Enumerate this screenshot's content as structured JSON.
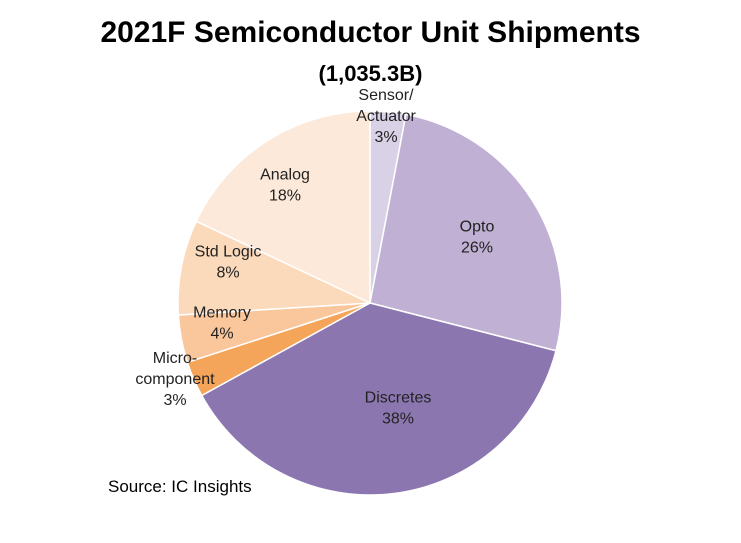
{
  "chart_data": {
    "type": "pie",
    "title": "2021F Semiconductor Unit Shipments",
    "subtitle": "(1,035.3B)",
    "source": "Source:  IC Insights",
    "slices": [
      {
        "label_lines": [
          "Sensor/",
          "Actuator",
          "3%"
        ],
        "value": 3,
        "color": "#d9d1e6"
      },
      {
        "label_lines": [
          "Opto",
          "26%"
        ],
        "value": 26,
        "color": "#bfb0d4"
      },
      {
        "label_lines": [
          "Discretes",
          "38%"
        ],
        "value": 38,
        "color": "#8c76b0"
      },
      {
        "label_lines": [
          "Micro-",
          "component",
          "3%"
        ],
        "value": 3,
        "color": "#f5a55a"
      },
      {
        "label_lines": [
          "Memory",
          "4%"
        ],
        "value": 4,
        "color": "#f9c79b"
      },
      {
        "label_lines": [
          "Std Logic",
          "8%"
        ],
        "value": 8,
        "color": "#fbd9bb"
      },
      {
        "label_lines": [
          "Analog",
          "18%"
        ],
        "value": 18,
        "color": "#fde9d9"
      }
    ]
  }
}
